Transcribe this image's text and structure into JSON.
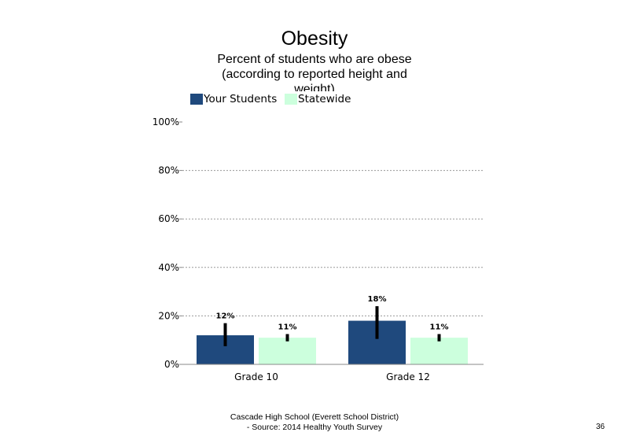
{
  "chart_data": {
    "type": "bar",
    "title": "Obesity",
    "subtitle": "Percent of students who are obese (according to reported height and weight)",
    "categories": [
      "Grade 10",
      "Grade 12"
    ],
    "series": [
      {
        "name": "Your Students",
        "values": [
          12,
          18
        ],
        "labels": [
          "12%",
          "18%"
        ],
        "error_low": [
          7.5,
          10.5
        ],
        "error_high": [
          17,
          24
        ],
        "color": "#1F497D"
      },
      {
        "name": "Statewide",
        "values": [
          11,
          11
        ],
        "labels": [
          "11%",
          "11%"
        ],
        "error_low": [
          9.5,
          9.5
        ],
        "error_high": [
          12.5,
          12.5
        ],
        "color": "#CCFFDD"
      }
    ],
    "yticks": [
      "0%",
      "20%",
      "40%",
      "60%",
      "80%",
      "100%"
    ],
    "ylim": [
      0,
      100
    ],
    "grid": true,
    "legend": "top-left"
  },
  "footer": {
    "line1": "Cascade High School (Everett School District)",
    "line2": "- Source: 2014 Healthy Youth Survey"
  },
  "page_number": "36"
}
